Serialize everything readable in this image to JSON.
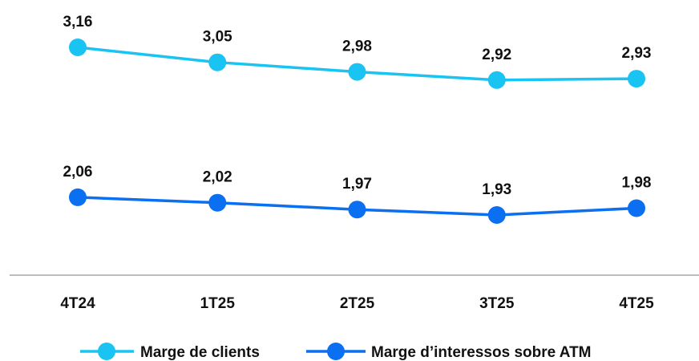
{
  "chart_data": {
    "type": "line",
    "categories": [
      "4T24",
      "1T25",
      "2T25",
      "3T25",
      "4T25"
    ],
    "series": [
      {
        "name": "Marge de clients",
        "values": [
          3.16,
          3.05,
          2.98,
          2.92,
          2.93
        ],
        "labels": [
          "3,16",
          "3,05",
          "2,98",
          "2,92",
          "2,93"
        ],
        "color": "#19c3f2"
      },
      {
        "name": "Marge d’interessos sobre ATM",
        "values": [
          2.06,
          2.02,
          1.97,
          1.93,
          1.98
        ],
        "labels": [
          "2,06",
          "2,02",
          "1,97",
          "1,93",
          "1,98"
        ],
        "color": "#0a6ff0"
      }
    ],
    "title": "",
    "xlabel": "",
    "ylabel": "",
    "grid": false,
    "legend_position": "bottom"
  },
  "colors": {
    "axis": "#a6a6a6",
    "text": "#111111"
  }
}
